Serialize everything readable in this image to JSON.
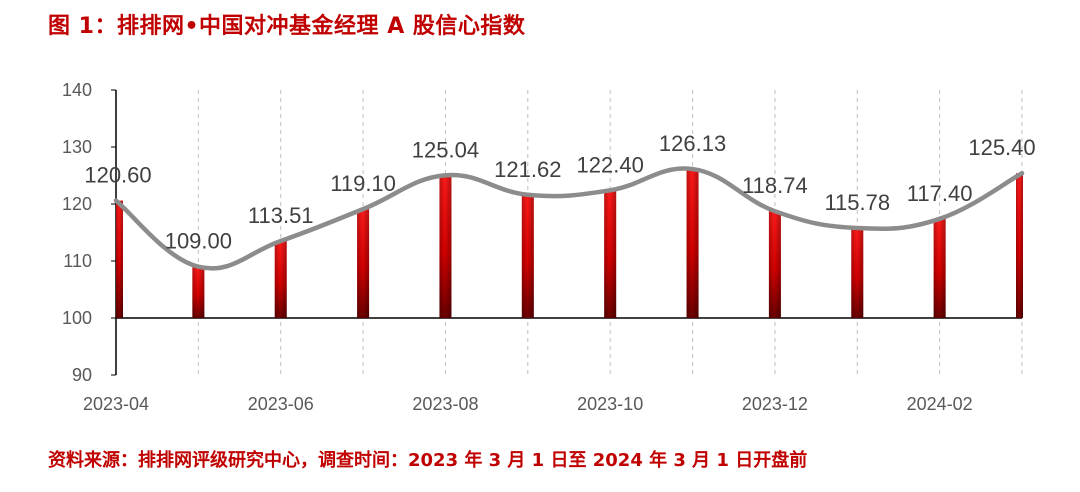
{
  "title": "图 1：排排网•中国对冲基金经理 A 股信心指数",
  "source": "资料来源：排排网评级研究中心，调查时间：2023 年 3 月 1 日至 2024 年 3 月 1 日开盘前",
  "colors": {
    "title": "#c00000",
    "bar_top": "#ff1a1a",
    "bar_bottom": "#6b0000",
    "line": "#8c8c8c"
  },
  "chart_data": {
    "type": "bar",
    "categories": [
      "2023-04",
      "2023-05",
      "2023-06",
      "2023-07",
      "2023-08",
      "2023-09",
      "2023-10",
      "2023-11",
      "2023-12",
      "2024-01",
      "2024-02",
      "2024-03"
    ],
    "values": [
      120.6,
      109.0,
      113.51,
      119.1,
      125.04,
      121.62,
      122.4,
      126.13,
      118.74,
      115.78,
      117.4,
      125.4
    ],
    "labels": [
      "120.60",
      "109.00",
      "113.51",
      "119.10",
      "125.04",
      "121.62",
      "122.40",
      "126.13",
      "118.74",
      "115.78",
      "117.40",
      "125.40"
    ],
    "x_tick_labels": [
      "2023-04",
      "2023-06",
      "2023-08",
      "2023-10",
      "2023-12",
      "2024-02"
    ],
    "y_ticks": [
      "90",
      "100",
      "110",
      "120",
      "130",
      "140"
    ],
    "ylim": [
      90,
      140
    ],
    "bar_base": 100,
    "overlay": "smoothed line through bar tops",
    "grid": "vertical dashed",
    "legend": "none"
  }
}
